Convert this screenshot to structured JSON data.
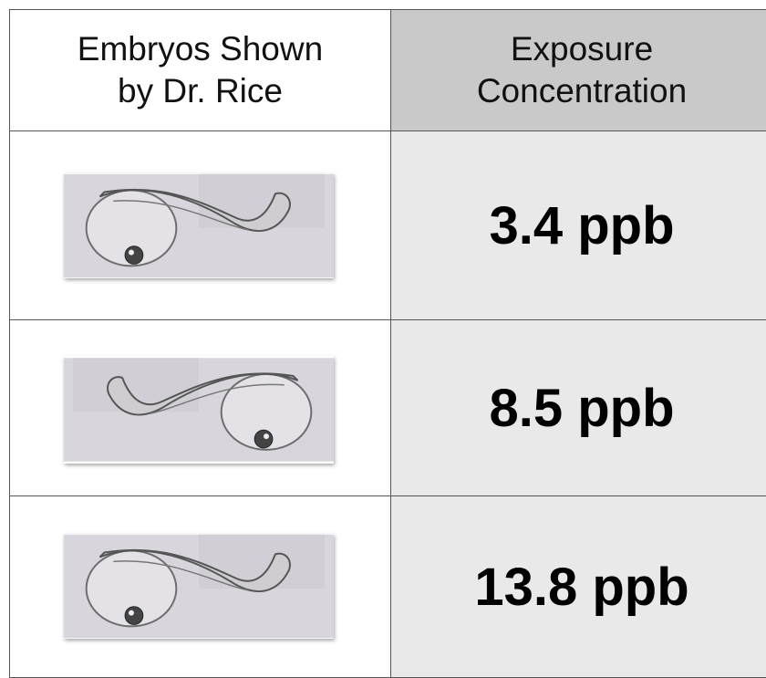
{
  "table": {
    "header": [
      "Embryos Shown by Dr. Rice",
      "Exposure Concentration"
    ],
    "rows": [
      "3.4 ppb",
      "8.5 ppb",
      "13.8 ppb"
    ]
  }
}
